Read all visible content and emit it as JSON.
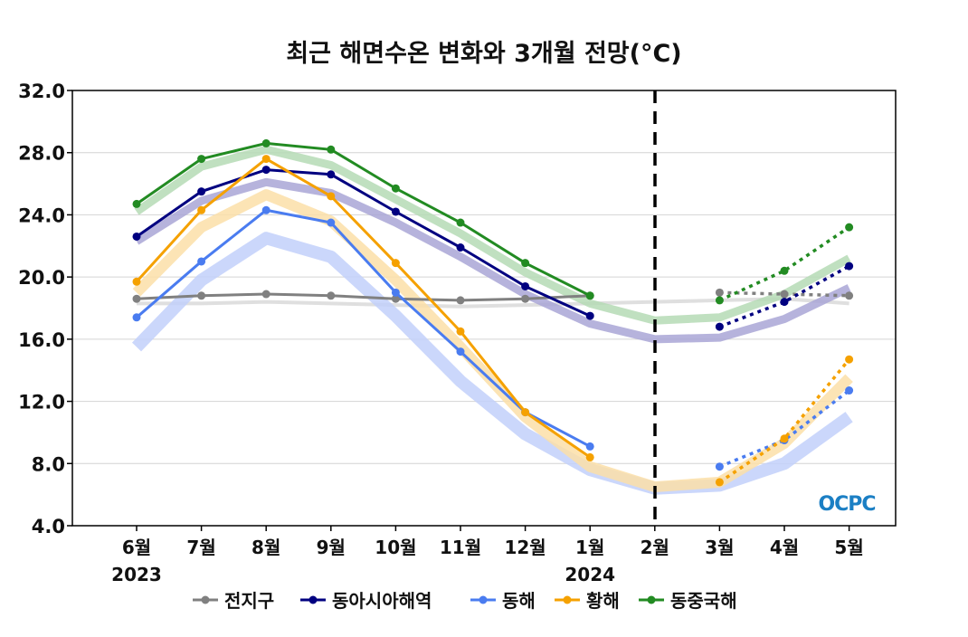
{
  "chart_data": {
    "type": "line",
    "title": "최근 해면수온 변화와 3개월 전망(°C)",
    "xlabel": "",
    "ylabel": "",
    "ylim": [
      4.0,
      32.0
    ],
    "yticks": [
      "4.0",
      "8.0",
      "12.0",
      "16.0",
      "20.0",
      "24.0",
      "28.0",
      "32.0"
    ],
    "categories": [
      "6월",
      "7월",
      "8월",
      "9월",
      "10월",
      "11월",
      "12월",
      "1월",
      "2월",
      "3월",
      "4월",
      "5월"
    ],
    "year_labels": [
      {
        "index": 0,
        "label": "2023"
      },
      {
        "index": 7,
        "label": "2024"
      }
    ],
    "divider_index": 8,
    "grid": true,
    "legend_position": "bottom",
    "watermark": "OCPC",
    "series": [
      {
        "name": "전지구",
        "color": "#808080",
        "band_color": "#d9d9d9",
        "observed": [
          18.6,
          18.8,
          18.9,
          18.8,
          18.6,
          18.5,
          18.6,
          18.8
        ],
        "climatology": [
          18.3,
          18.3,
          18.4,
          18.3,
          18.2,
          18.1,
          18.2,
          18.3,
          18.4,
          18.5,
          18.6,
          18.3
        ],
        "forecast": [
          19.0,
          18.9,
          18.8
        ]
      },
      {
        "name": "동아시아해역",
        "color": "#000080",
        "band_color": "#a9a6d6",
        "observed": [
          22.6,
          25.5,
          26.9,
          26.6,
          24.2,
          21.9,
          19.4,
          17.5
        ],
        "climatology": [
          22.3,
          24.9,
          26.1,
          25.4,
          23.5,
          21.3,
          18.9,
          17.0,
          16.0,
          16.1,
          17.3,
          19.3
        ],
        "forecast": [
          16.8,
          18.4,
          20.7
        ]
      },
      {
        "name": "동해",
        "color": "#4a7cf0",
        "band_color": "#c2d0fa",
        "observed": [
          17.4,
          21.0,
          24.3,
          23.5,
          19.0,
          15.2,
          11.3,
          9.1
        ],
        "climatology": [
          15.5,
          19.8,
          22.5,
          21.3,
          17.5,
          13.3,
          9.9,
          7.6,
          6.4,
          6.6,
          8.0,
          11.0
        ],
        "forecast": [
          7.8,
          9.5,
          12.7
        ]
      },
      {
        "name": "황해",
        "color": "#f5a100",
        "band_color": "#fbdfa8",
        "observed": [
          19.7,
          24.3,
          27.6,
          25.2,
          20.9,
          16.5,
          11.3,
          8.4
        ],
        "climatology": [
          19.0,
          23.2,
          25.3,
          23.6,
          19.8,
          15.5,
          11.0,
          7.8,
          6.5,
          6.8,
          9.3,
          13.5
        ],
        "forecast": [
          6.8,
          9.6,
          14.7
        ]
      },
      {
        "name": "동중국해",
        "color": "#228b22",
        "band_color": "#b5dbb5",
        "observed": [
          24.7,
          27.6,
          28.6,
          28.2,
          25.7,
          23.5,
          20.9,
          18.8
        ],
        "climatology": [
          24.2,
          27.1,
          28.2,
          27.2,
          25.0,
          22.8,
          20.3,
          18.3,
          17.2,
          17.4,
          18.9,
          21.2
        ],
        "forecast": [
          18.5,
          20.4,
          23.2
        ]
      }
    ]
  }
}
